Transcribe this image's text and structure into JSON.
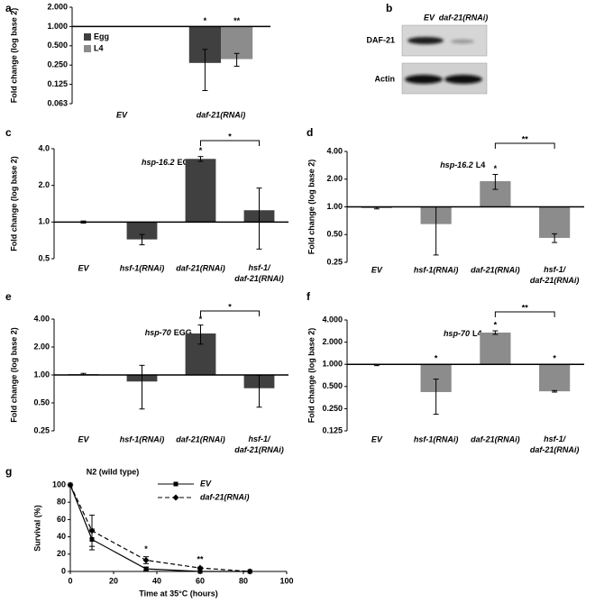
{
  "chart_data": [
    {
      "type": "bar",
      "panel": "a",
      "y_label": "Fold change (log base 2)",
      "log_scale": true,
      "log_base": 2,
      "categories": [
        "EV",
        "daf-21(RNAi)"
      ],
      "series": [
        {
          "name": "Egg",
          "color": "#404040",
          "values": [
            1,
            0.27
          ],
          "errors": [
            0,
            0.17
          ],
          "significance": [
            null,
            "*"
          ]
        },
        {
          "name": "L4",
          "color": "#8c8c8c",
          "values": [
            1,
            0.31
          ],
          "errors": [
            0,
            0.07
          ],
          "significance": [
            null,
            "**"
          ]
        }
      ],
      "ylim": [
        0.0625,
        2
      ],
      "yticks": [
        {
          "value": 2,
          "label": "2.000"
        },
        {
          "value": 1,
          "label": "1.000"
        },
        {
          "value": 0.5,
          "label": "0.500"
        },
        {
          "value": 0.25,
          "label": "0.250"
        },
        {
          "value": 0.125,
          "label": "0.125"
        },
        {
          "value": 0.0625,
          "label": "0.063"
        }
      ],
      "legend": "upper left"
    },
    {
      "type": "bar",
      "panel": "c",
      "title_gene": "hsp-16.2",
      "title_stage": "EGG",
      "y_label": "Fold change (log base 2)",
      "log_scale": true,
      "log_base": 2,
      "categories": [
        "EV",
        "hsf-1(RNAi)",
        "daf-21(RNAi)",
        "hsf-1/\ndaf-21(RNAi)"
      ],
      "values": [
        1,
        0.72,
        3.3,
        1.25
      ],
      "errors": [
        0.02,
        0.07,
        0.15,
        0.65
      ],
      "significance": [
        null,
        null,
        "*",
        null
      ],
      "comparisons": [
        {
          "from": 2,
          "to": 3,
          "label": "*"
        }
      ],
      "color": "#404040",
      "ylim": [
        0.5,
        4
      ],
      "yticks": [
        {
          "value": 4,
          "label": "4.0"
        },
        {
          "value": 2,
          "label": "2.0"
        },
        {
          "value": 1,
          "label": "1.0"
        },
        {
          "value": 0.5,
          "label": "0.5"
        }
      ]
    },
    {
      "type": "bar",
      "panel": "d",
      "title_gene": "hsp-16.2",
      "title_stage": "L4",
      "y_label": "Fold change (log base 2)",
      "log_scale": true,
      "log_base": 2,
      "categories": [
        "EV",
        "hsf-1(RNAi)",
        "daf-21(RNAi)",
        "hsf-1/\ndaf-21(RNAi)"
      ],
      "values": [
        0.97,
        0.65,
        1.9,
        0.46
      ],
      "errors": [
        0.02,
        0.35,
        0.35,
        0.05
      ],
      "significance": [
        null,
        null,
        "*",
        null
      ],
      "comparisons": [
        {
          "from": 2,
          "to": 3,
          "label": "**"
        }
      ],
      "color": "#8c8c8c",
      "ylim": [
        0.25,
        4
      ],
      "yticks": [
        {
          "value": 4,
          "label": "4.00"
        },
        {
          "value": 2,
          "label": "2.00"
        },
        {
          "value": 1,
          "label": "1.00"
        },
        {
          "value": 0.5,
          "label": "0.50"
        },
        {
          "value": 0.25,
          "label": "0.25"
        }
      ]
    },
    {
      "type": "bar",
      "panel": "e",
      "title_gene": "hsp-70",
      "title_stage": "EGG",
      "y_label": "Fold change (log base 2)",
      "log_scale": true,
      "log_base": 2,
      "categories": [
        "EV",
        "hsf-1(RNAi)",
        "daf-21(RNAi)",
        "hsf-1/\ndaf-21(RNAi)"
      ],
      "values": [
        1.02,
        0.85,
        2.8,
        0.72
      ],
      "errors": [
        0.02,
        0.42,
        0.65,
        0.27
      ],
      "significance": [
        null,
        null,
        "*",
        null
      ],
      "comparisons": [
        {
          "from": 2,
          "to": 3,
          "label": "*"
        }
      ],
      "color": "#404040",
      "ylim": [
        0.25,
        4
      ],
      "yticks": [
        {
          "value": 4,
          "label": "4.00"
        },
        {
          "value": 2,
          "label": "2.00"
        },
        {
          "value": 1,
          "label": "1.00"
        },
        {
          "value": 0.5,
          "label": "0.50"
        },
        {
          "value": 0.25,
          "label": "0.25"
        }
      ]
    },
    {
      "type": "bar",
      "panel": "f",
      "title_gene": "hsp-70",
      "title_stage": "L4",
      "y_label": "Fold change (log base 2)",
      "log_scale": true,
      "log_base": 2,
      "categories": [
        "EV",
        "hsf-1(RNAi)",
        "daf-21(RNAi)",
        "hsf-1/\ndaf-21(RNAi)"
      ],
      "values": [
        0.98,
        0.42,
        2.7,
        0.43
      ],
      "errors": [
        0.02,
        0.21,
        0.15,
        0.01
      ],
      "significance": [
        null,
        "*",
        "*",
        "*"
      ],
      "comparisons": [
        {
          "from": 2,
          "to": 3,
          "label": "**"
        }
      ],
      "color": "#8c8c8c",
      "ylim": [
        0.125,
        4
      ],
      "yticks": [
        {
          "value": 4,
          "label": "4.000"
        },
        {
          "value": 2,
          "label": "2.000"
        },
        {
          "value": 1,
          "label": "1.000"
        },
        {
          "value": 0.5,
          "label": "0.500"
        },
        {
          "value": 0.25,
          "label": "0.250"
        },
        {
          "value": 0.125,
          "label": "0.125"
        }
      ]
    },
    {
      "type": "line",
      "panel": "g",
      "title": "N2 (wild type)",
      "x_label": "Time at 35°C (hours)",
      "y_label": "Survival (%)",
      "x": [
        0,
        10,
        35,
        60,
        83
      ],
      "series": [
        {
          "name": "EV",
          "color": "#000000",
          "line_style": "solid",
          "marker": "square",
          "values": [
            100,
            37,
            3,
            0,
            0
          ],
          "errors": [
            0,
            12,
            2,
            0,
            0
          ]
        },
        {
          "name": "daf-21(RNAi)",
          "color": "#000000",
          "line_style": "dashed",
          "marker": "diamond",
          "values": [
            100,
            47,
            13,
            4,
            0
          ],
          "errors": [
            0,
            18,
            4,
            1,
            0
          ]
        }
      ],
      "significance": [
        null,
        null,
        "*",
        "**",
        null
      ],
      "xlim": [
        0,
        100
      ],
      "xticks": [
        0,
        20,
        40,
        60,
        80,
        100
      ],
      "ylim": [
        0,
        100
      ],
      "yticks": [
        0,
        20,
        40,
        60,
        80,
        100
      ]
    }
  ],
  "blot": {
    "panel": "b",
    "lanes": [
      "EV",
      "daf-21(RNAi)"
    ],
    "rows": [
      "DAF-21",
      "Actin"
    ]
  }
}
